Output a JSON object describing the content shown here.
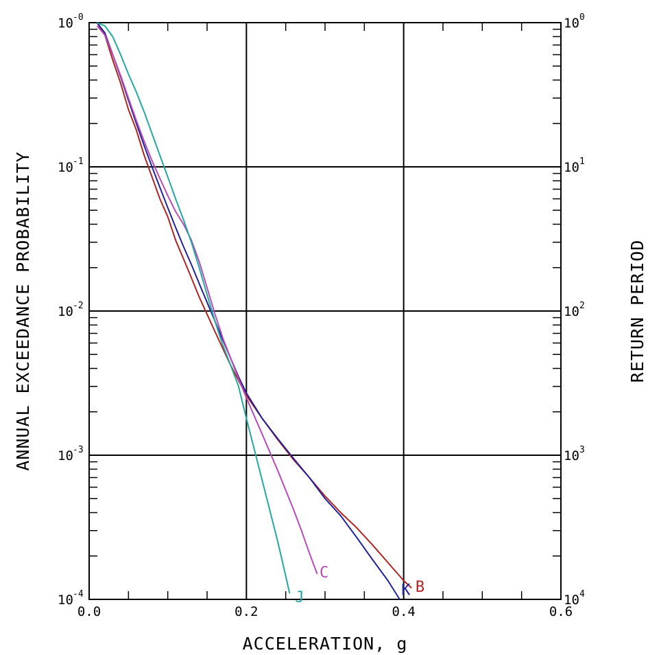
{
  "chart_data": {
    "type": "line",
    "title": "",
    "xlabel": "ACCELERATION, g",
    "ylabel": "ANNUAL EXCEEDANCE PROBABILITY",
    "y2label": "RETURN PERIOD",
    "xlim": [
      0.0,
      0.6
    ],
    "ylim": [
      0.0001,
      1
    ],
    "yscale": "log",
    "grid": true,
    "grid_x": [
      0.2,
      0.4
    ],
    "grid_y": [
      0.1,
      0.01,
      0.001
    ],
    "x_ticks": [
      {
        "value": 0.0,
        "label": "0.0"
      },
      {
        "value": 0.2,
        "label": "0.2"
      },
      {
        "value": 0.4,
        "label": "0.4"
      },
      {
        "value": 0.6,
        "label": "0.6"
      }
    ],
    "y_ticks_left": [
      {
        "value": 1,
        "base": "10",
        "exp": "-0"
      },
      {
        "value": 0.1,
        "base": "10",
        "exp": "-1"
      },
      {
        "value": 0.01,
        "base": "10",
        "exp": "-2"
      },
      {
        "value": 0.001,
        "base": "10",
        "exp": "-3"
      },
      {
        "value": 0.0001,
        "base": "10",
        "exp": "-4"
      }
    ],
    "y_ticks_right": [
      {
        "value": 1,
        "base": "10",
        "exp": "0"
      },
      {
        "value": 0.1,
        "base": "10",
        "exp": "1"
      },
      {
        "value": 0.01,
        "base": "10",
        "exp": "2"
      },
      {
        "value": 0.001,
        "base": "10",
        "exp": "3"
      },
      {
        "value": 0.0001,
        "base": "10",
        "exp": "4"
      }
    ],
    "series": [
      {
        "name": "B",
        "color": "#b22222",
        "x": [
          0.01,
          0.02,
          0.03,
          0.04,
          0.05,
          0.06,
          0.07,
          0.08,
          0.09,
          0.1,
          0.11,
          0.12,
          0.13,
          0.14,
          0.15,
          0.16,
          0.17,
          0.18,
          0.19,
          0.2,
          0.22,
          0.24,
          0.26,
          0.28,
          0.3,
          0.32,
          0.34,
          0.36,
          0.38,
          0.4,
          0.41
        ],
        "y": [
          1.0,
          0.82,
          0.55,
          0.38,
          0.25,
          0.18,
          0.12,
          0.085,
          0.06,
          0.045,
          0.031,
          0.023,
          0.017,
          0.0125,
          0.0095,
          0.0072,
          0.0055,
          0.0042,
          0.0033,
          0.0026,
          0.0018,
          0.00128,
          0.00093,
          0.0007,
          0.00052,
          0.0004,
          0.000315,
          0.00024,
          0.00018,
          0.000135,
          0.00012
        ]
      },
      {
        "name": "K",
        "color": "#22229a",
        "x": [
          0.01,
          0.02,
          0.03,
          0.04,
          0.05,
          0.06,
          0.07,
          0.08,
          0.09,
          0.1,
          0.11,
          0.12,
          0.13,
          0.14,
          0.15,
          0.16,
          0.17,
          0.18,
          0.19,
          0.2,
          0.22,
          0.24,
          0.26,
          0.28,
          0.3,
          0.32,
          0.34,
          0.36,
          0.38,
          0.395
        ],
        "y": [
          1.0,
          0.85,
          0.6,
          0.42,
          0.29,
          0.2,
          0.14,
          0.1,
          0.072,
          0.052,
          0.038,
          0.028,
          0.021,
          0.0155,
          0.0115,
          0.0085,
          0.0063,
          0.0047,
          0.0035,
          0.0027,
          0.0018,
          0.0013,
          0.00095,
          0.0007,
          0.0005,
          0.00038,
          0.00027,
          0.00019,
          0.000135,
          0.0001
        ]
      },
      {
        "name": "C",
        "color": "#b84ab8",
        "x": [
          0.01,
          0.02,
          0.03,
          0.04,
          0.05,
          0.06,
          0.07,
          0.08,
          0.09,
          0.1,
          0.11,
          0.12,
          0.13,
          0.14,
          0.15,
          0.16,
          0.17,
          0.18,
          0.19,
          0.2,
          0.22,
          0.24,
          0.26,
          0.27,
          0.28,
          0.29
        ],
        "y": [
          0.95,
          0.82,
          0.6,
          0.43,
          0.3,
          0.21,
          0.15,
          0.11,
          0.083,
          0.063,
          0.049,
          0.04,
          0.031,
          0.022,
          0.0145,
          0.0095,
          0.0065,
          0.0047,
          0.0034,
          0.0025,
          0.0014,
          0.00078,
          0.00042,
          0.0003,
          0.00021,
          0.00015
        ]
      },
      {
        "name": "J",
        "color": "#22a8a0",
        "x": [
          0.01,
          0.02,
          0.03,
          0.04,
          0.05,
          0.06,
          0.07,
          0.08,
          0.09,
          0.1,
          0.11,
          0.12,
          0.13,
          0.14,
          0.15,
          0.16,
          0.17,
          0.18,
          0.19,
          0.2,
          0.21,
          0.22,
          0.23,
          0.24,
          0.25,
          0.255
        ],
        "y": [
          1.0,
          0.95,
          0.8,
          0.6,
          0.44,
          0.33,
          0.24,
          0.17,
          0.12,
          0.085,
          0.06,
          0.043,
          0.03,
          0.02,
          0.013,
          0.0085,
          0.0058,
          0.0042,
          0.003,
          0.0018,
          0.0011,
          0.00067,
          0.00041,
          0.00025,
          0.000145,
          0.00011
        ]
      }
    ],
    "curve_labels": [
      {
        "name": "B",
        "color": "#b22222",
        "x": 0.415,
        "y": 0.000118
      },
      {
        "name": "K",
        "color": "#22229a",
        "x": 0.397,
        "y": 0.000112
      },
      {
        "name": "C",
        "color": "#b84ab8",
        "x": 0.293,
        "y": 0.000148
      },
      {
        "name": "J",
        "color": "#22a8a0",
        "x": 0.262,
        "y": 0.0001
      }
    ]
  }
}
